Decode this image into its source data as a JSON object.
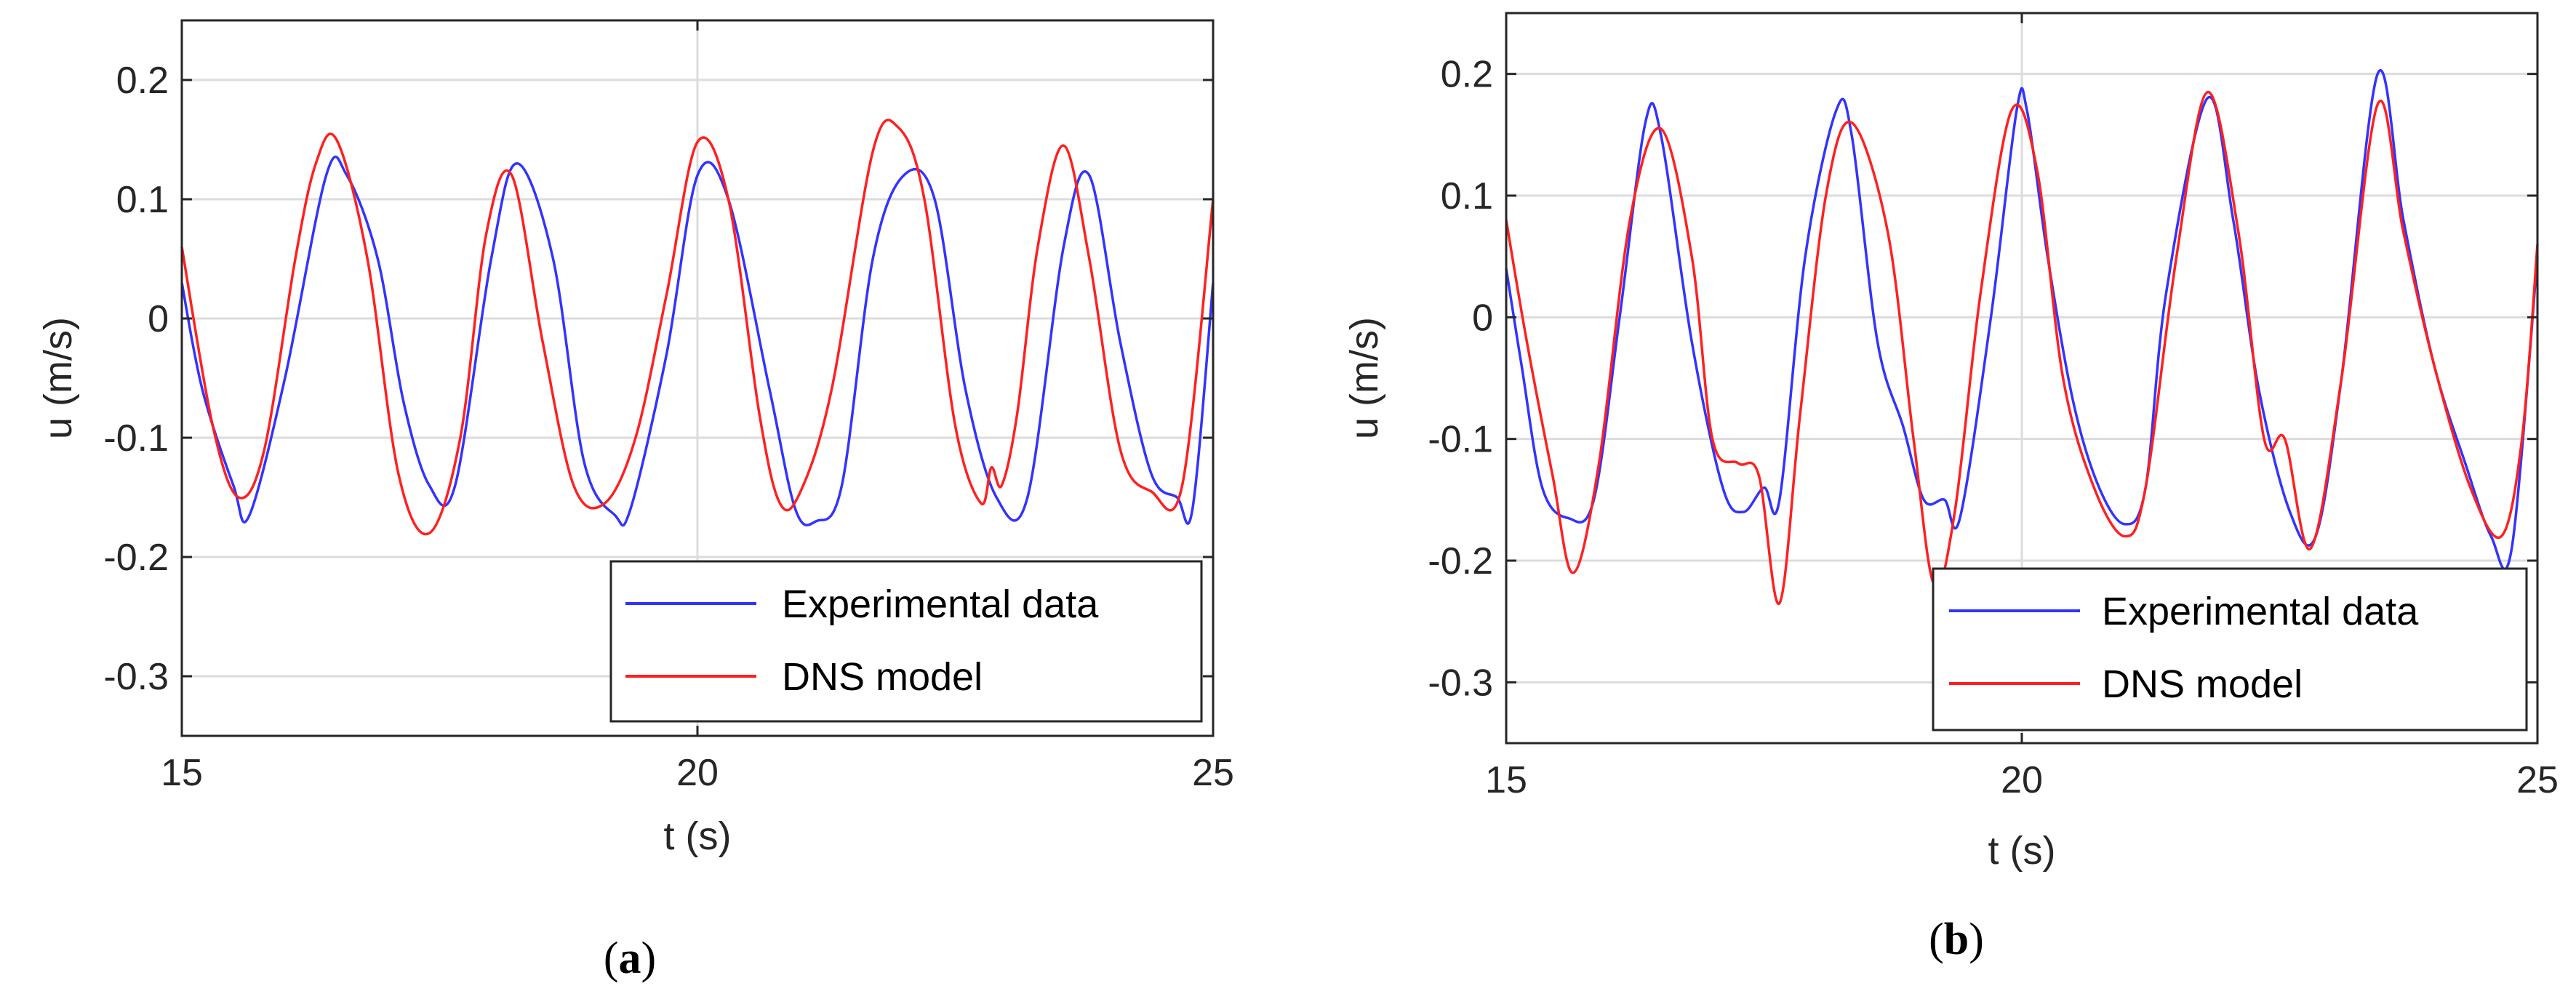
{
  "colors": {
    "experimental": "#3333ff",
    "dns": "#ff2020",
    "axis": "#262626",
    "grid": "#dcdcdc"
  },
  "chart_data": [
    {
      "panel": "a",
      "type": "line",
      "xlabel": "t (s)",
      "ylabel": "u (m/s)",
      "xlim": [
        15,
        25
      ],
      "ylim": [
        -0.35,
        0.25
      ],
      "xticks": [
        15,
        20,
        25
      ],
      "yticks": [
        0.2,
        0.1,
        0,
        -0.1,
        -0.2,
        -0.3
      ],
      "ytick_labels": [
        "0.2",
        "0.1",
        "0",
        "-0.1",
        "-0.2",
        "-0.3"
      ],
      "grid": true,
      "legend_position": "bottom-right",
      "panel_label": "a",
      "series": [
        {
          "name": "Experimental data",
          "color": "#3333ff",
          "x": [
            15.0,
            15.2,
            15.5,
            15.65,
            16.0,
            16.4,
            16.6,
            16.9,
            17.15,
            17.4,
            17.65,
            18.0,
            18.25,
            18.6,
            18.9,
            19.2,
            19.35,
            19.7,
            20.0,
            20.3,
            20.7,
            20.95,
            21.15,
            21.4,
            21.7,
            22.0,
            22.3,
            22.6,
            22.9,
            23.2,
            23.55,
            23.8,
            24.1,
            24.4,
            24.65,
            24.8,
            25.0
          ],
          "values": [
            0.03,
            -0.06,
            -0.14,
            -0.166,
            -0.05,
            0.12,
            0.12,
            0.05,
            -0.07,
            -0.14,
            -0.14,
            0.05,
            0.13,
            0.05,
            -0.12,
            -0.165,
            -0.16,
            -0.03,
            0.12,
            0.1,
            -0.06,
            -0.16,
            -0.17,
            -0.14,
            0.05,
            0.12,
            0.1,
            -0.06,
            -0.15,
            -0.15,
            0.06,
            0.12,
            -0.02,
            -0.13,
            -0.15,
            -0.16,
            0.03
          ]
        },
        {
          "name": "DNS model",
          "color": "#ff2020",
          "x": [
            15.0,
            15.3,
            15.55,
            15.8,
            16.1,
            16.3,
            16.5,
            16.8,
            17.1,
            17.4,
            17.7,
            17.95,
            18.2,
            18.5,
            18.8,
            19.1,
            19.4,
            19.7,
            20.0,
            20.3,
            20.6,
            20.8,
            21.0,
            21.3,
            21.7,
            21.95,
            22.2,
            22.5,
            22.75,
            22.85,
            22.95,
            23.1,
            23.3,
            23.55,
            23.8,
            24.1,
            24.4,
            24.7,
            25.0
          ],
          "values": [
            0.06,
            -0.09,
            -0.15,
            -0.11,
            0.05,
            0.13,
            0.15,
            0.05,
            -0.13,
            -0.18,
            -0.1,
            0.07,
            0.12,
            -0.02,
            -0.14,
            -0.155,
            -0.1,
            0.02,
            0.148,
            0.1,
            -0.08,
            -0.155,
            -0.145,
            -0.06,
            0.14,
            0.16,
            0.1,
            -0.09,
            -0.155,
            -0.125,
            -0.14,
            -0.08,
            0.06,
            0.145,
            0.05,
            -0.11,
            -0.145,
            -0.14,
            0.1
          ]
        }
      ]
    },
    {
      "panel": "b",
      "type": "line",
      "xlabel": "t (s)",
      "ylabel": "u (m/s)",
      "xlim": [
        15,
        25
      ],
      "ylim": [
        -0.35,
        0.25
      ],
      "xticks": [
        15,
        20,
        25
      ],
      "yticks": [
        0.2,
        0.1,
        0,
        -0.1,
        -0.2,
        -0.3
      ],
      "ytick_labels": [
        "0.2",
        "0.1",
        "0",
        "-0.1",
        "-0.2",
        "-0.3"
      ],
      "grid": true,
      "legend_position": "bottom-right",
      "panel_label": "b",
      "series": [
        {
          "name": "Experimental data",
          "color": "#3333ff",
          "x": [
            15.0,
            15.15,
            15.35,
            15.6,
            15.85,
            16.1,
            16.35,
            16.5,
            16.8,
            17.1,
            17.3,
            17.5,
            17.65,
            17.9,
            18.2,
            18.35,
            18.6,
            18.85,
            19.05,
            19.25,
            19.4,
            19.7,
            19.95,
            20.05,
            20.25,
            20.5,
            20.75,
            21.0,
            21.2,
            21.4,
            21.8,
            22.05,
            22.3,
            22.6,
            22.85,
            23.1,
            23.45,
            23.7,
            24.0,
            24.3,
            24.55,
            24.75,
            25.0
          ],
          "values": [
            0.04,
            -0.04,
            -0.14,
            -0.165,
            -0.15,
            0.0,
            0.16,
            0.15,
            -0.02,
            -0.14,
            -0.16,
            -0.14,
            -0.15,
            0.05,
            0.17,
            0.15,
            -0.02,
            -0.09,
            -0.15,
            -0.15,
            -0.165,
            0.0,
            0.17,
            0.17,
            0.05,
            -0.07,
            -0.14,
            -0.17,
            -0.14,
            0.02,
            0.18,
            0.08,
            -0.06,
            -0.16,
            -0.18,
            -0.05,
            0.2,
            0.08,
            -0.04,
            -0.12,
            -0.18,
            -0.19,
            0.05
          ]
        },
        {
          "name": "DNS model",
          "color": "#ff2020",
          "x": [
            15.0,
            15.2,
            15.45,
            15.65,
            15.9,
            16.2,
            16.5,
            16.8,
            17.0,
            17.25,
            17.45,
            17.65,
            17.85,
            18.1,
            18.35,
            18.7,
            18.95,
            19.15,
            19.35,
            19.6,
            19.9,
            20.15,
            20.4,
            20.7,
            21.0,
            21.2,
            21.5,
            21.8,
            22.1,
            22.35,
            22.55,
            22.8,
            23.1,
            23.45,
            23.7,
            24.0,
            24.35,
            24.65,
            24.85,
            25.0
          ],
          "values": [
            0.08,
            -0.02,
            -0.13,
            -0.21,
            -0.12,
            0.08,
            0.155,
            0.05,
            -0.1,
            -0.12,
            -0.13,
            -0.235,
            -0.08,
            0.1,
            0.16,
            0.07,
            -0.1,
            -0.22,
            -0.16,
            0.02,
            0.17,
            0.12,
            -0.05,
            -0.14,
            -0.18,
            -0.14,
            0.05,
            0.185,
            0.07,
            -0.1,
            -0.1,
            -0.19,
            -0.05,
            0.175,
            0.07,
            -0.04,
            -0.14,
            -0.18,
            -0.1,
            0.06
          ]
        }
      ]
    }
  ]
}
